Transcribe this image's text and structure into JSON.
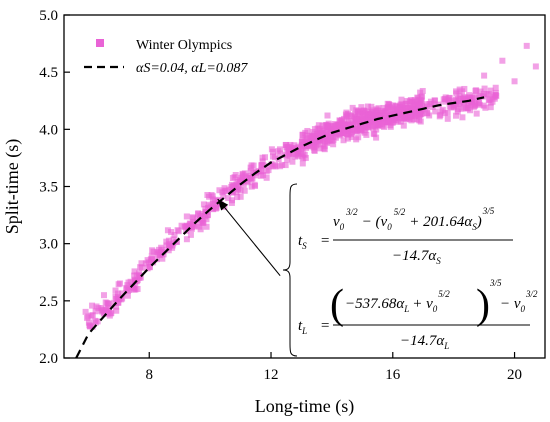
{
  "chart_data": {
    "type": "scatter",
    "xlabel": "Long-time (s)",
    "ylabel": "Split-time (s)",
    "xlim": [
      5.2,
      21.0
    ],
    "ylim": [
      2.0,
      5.0
    ],
    "x_ticks": [
      "8",
      "12",
      "16",
      "20"
    ],
    "y_ticks": [
      "2.0",
      "2.5",
      "3.0",
      "3.5",
      "4.0",
      "4.5",
      "5.0"
    ],
    "grid": false,
    "legend_position": "top-left",
    "series": [
      {
        "name": "Winter Olympics",
        "kind": "scatter",
        "color": "#e963d6",
        "marker": "square",
        "point_count": 1000,
        "trend_samples": {
          "x": [
            6.0,
            7.0,
            8.0,
            9.0,
            10.0,
            11.0,
            12.0,
            13.0,
            14.0,
            15.0,
            16.0,
            17.0,
            18.0,
            19.0,
            20.0
          ],
          "y": [
            2.33,
            2.53,
            2.83,
            3.06,
            3.33,
            3.52,
            3.71,
            3.85,
            3.98,
            4.07,
            4.13,
            4.19,
            4.23,
            4.27,
            4.3
          ]
        },
        "outliers": [
          {
            "x": 20.4,
            "y": 4.73
          },
          {
            "x": 19.6,
            "y": 4.6
          },
          {
            "x": 20.7,
            "y": 4.55
          },
          {
            "x": 20.0,
            "y": 4.42
          },
          {
            "x": 19.0,
            "y": 4.47
          }
        ]
      },
      {
        "name": "αS=0.04, αL=0.087",
        "kind": "line",
        "style": "dashed",
        "color": "#000000",
        "x": [
          5.6,
          6.0,
          6.5,
          7.0,
          7.5,
          8.0,
          8.5,
          9.0,
          9.5,
          10.0,
          10.5,
          11.0,
          11.5,
          12.0,
          12.5,
          13.0,
          13.5,
          14.0,
          14.5,
          15.0,
          15.5,
          16.0,
          16.5,
          17.0,
          17.5,
          18.0,
          18.5,
          19.0
        ],
        "y": [
          2.0,
          2.21,
          2.36,
          2.51,
          2.65,
          2.79,
          2.92,
          3.05,
          3.18,
          3.3,
          3.41,
          3.52,
          3.62,
          3.71,
          3.78,
          3.85,
          3.91,
          3.97,
          4.01,
          4.05,
          4.09,
          4.12,
          4.15,
          4.18,
          4.21,
          4.23,
          4.25,
          4.28
        ]
      }
    ],
    "annotation": {
      "arrow_from": {
        "x": 12.3,
        "y": 2.72
      },
      "arrow_to": {
        "x": 10.25,
        "y": 3.39
      }
    },
    "equations": {
      "ts_lhs": "t",
      "ts_lhs_sub": "S",
      "ts_num_a": "v",
      "ts_num_a_sub": "0",
      "ts_num_a_exp": "3/2",
      "ts_num_b": "− (v",
      "ts_num_b_sub": "0",
      "ts_num_b_exp": "5/2",
      "ts_num_c": "+ 201.64α",
      "ts_num_c_sub": "S",
      "ts_num_c_close": ")",
      "ts_num_c_exp": "3/5",
      "ts_den": "−14.7α",
      "ts_den_sub": "S",
      "tl_lhs": "t",
      "tl_lhs_sub": "L",
      "tl_num_a": "−537.68α",
      "tl_num_a_sub": "L",
      "tl_num_b": "+ v",
      "tl_num_b_sub": "0",
      "tl_num_b_exp": "5/2",
      "tl_num_b_outer_exp": "3/5",
      "tl_num_c": "− v",
      "tl_num_c_sub": "0",
      "tl_num_c_exp": "3/2",
      "tl_den": "−14.7α",
      "tl_den_sub": "L"
    }
  }
}
